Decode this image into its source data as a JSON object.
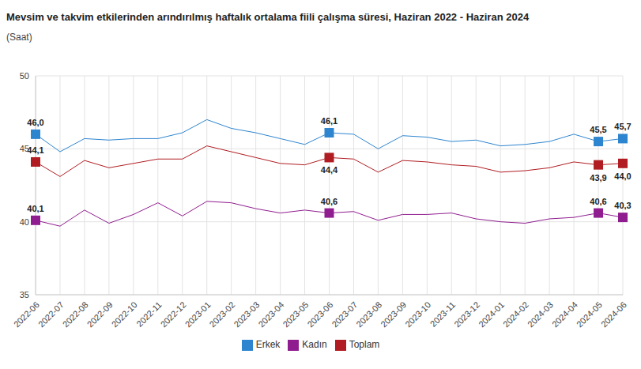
{
  "chart_data": {
    "type": "line",
    "title": "Mevsim ve takvim etkilerinden arındırılmış haftalık ortalama fiili çalışma süresi, Haziran 2022 - Haziran 2024",
    "subtitle": "(Saat)",
    "categories": [
      "2022-06",
      "2022-07",
      "2022-08",
      "2022-09",
      "2022-10",
      "2022-11",
      "2022-12",
      "2023-01",
      "2023-02",
      "2023-03",
      "2023-04",
      "2023-05",
      "2023-06",
      "2023-07",
      "2023-08",
      "2023-09",
      "2023-10",
      "2023-11",
      "2023-12",
      "2024-01",
      "2024-02",
      "2024-03",
      "2024-04",
      "2024-05",
      "2024-06"
    ],
    "series": [
      {
        "name": "Toplam",
        "color": "#b01c21",
        "marker": "square",
        "values": [
          44.1,
          43.1,
          44.2,
          43.7,
          44.0,
          44.3,
          44.3,
          45.2,
          44.8,
          44.4,
          44.0,
          43.9,
          44.4,
          44.3,
          43.4,
          44.2,
          44.1,
          43.9,
          43.8,
          43.4,
          43.5,
          43.7,
          44.1,
          43.9,
          44.0
        ],
        "value_labels": [
          "44,1",
          null,
          null,
          null,
          null,
          null,
          null,
          null,
          null,
          null,
          null,
          null,
          "44,4",
          null,
          null,
          null,
          null,
          null,
          null,
          null,
          null,
          null,
          null,
          "43,9",
          "44,0"
        ]
      },
      {
        "name": "Erkek",
        "color": "#2d84cf",
        "marker": "square",
        "values": [
          46.0,
          44.8,
          45.7,
          45.6,
          45.7,
          45.7,
          46.1,
          47.0,
          46.4,
          46.1,
          45.7,
          45.3,
          46.1,
          46.0,
          45.0,
          45.9,
          45.8,
          45.5,
          45.6,
          45.2,
          45.3,
          45.5,
          46.0,
          45.5,
          45.7
        ],
        "value_labels": [
          "46,0",
          null,
          null,
          null,
          null,
          null,
          null,
          null,
          null,
          null,
          null,
          null,
          "46,1",
          null,
          null,
          null,
          null,
          null,
          null,
          null,
          null,
          null,
          null,
          "45,5",
          "45,7"
        ]
      },
      {
        "name": "Kadın",
        "color": "#8f1d8f",
        "marker": "square",
        "values": [
          40.1,
          39.7,
          40.8,
          39.9,
          40.5,
          41.3,
          40.4,
          41.4,
          41.3,
          40.9,
          40.6,
          40.8,
          40.6,
          40.7,
          40.1,
          40.5,
          40.5,
          40.6,
          40.2,
          40.0,
          39.9,
          40.2,
          40.3,
          40.6,
          40.3
        ],
        "value_labels": [
          "40,1",
          null,
          null,
          null,
          null,
          null,
          null,
          null,
          null,
          null,
          null,
          null,
          "40,6",
          null,
          null,
          null,
          null,
          null,
          null,
          null,
          null,
          null,
          null,
          "40,6",
          "40,3"
        ]
      }
    ],
    "ylim": [
      35,
      50
    ],
    "yticks": [
      35,
      40,
      45,
      50
    ],
    "grid": true,
    "legend": "bottom"
  }
}
